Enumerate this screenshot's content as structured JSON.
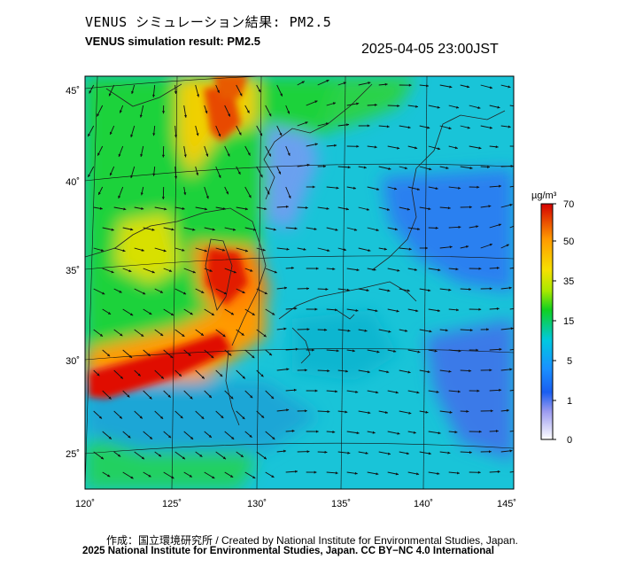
{
  "header": {
    "title_jp": "VENUS シミュレーション結果: PM2.5",
    "title_en": "VENUS simulation result: PM2.5",
    "timestamp": "2025-04-05 23:00JST"
  },
  "map": {
    "lon_range": [
      120,
      145
    ],
    "lat_range": [
      23,
      46
    ],
    "lat_ticks": [
      {
        "value": 45,
        "label": "45˚"
      },
      {
        "value": 40,
        "label": "40˚"
      },
      {
        "value": 35,
        "label": "35˚"
      },
      {
        "value": 30,
        "label": "30˚"
      },
      {
        "value": 25,
        "label": "25˚"
      }
    ],
    "lon_ticks": [
      {
        "value": 120,
        "label": "120˚"
      },
      {
        "value": 125,
        "label": "125˚"
      },
      {
        "value": 130,
        "label": "130˚"
      },
      {
        "value": 135,
        "label": "135˚"
      },
      {
        "value": 140,
        "label": "140˚"
      },
      {
        "value": 145,
        "label": "145˚"
      }
    ],
    "wind_vectors": true,
    "high_concentration_region": "East China Sea, Yellow Sea and Korea"
  },
  "colorbar": {
    "unit": "µg/m³",
    "ticks": [
      {
        "value": 70,
        "label": "70"
      },
      {
        "value": 50,
        "label": "50"
      },
      {
        "value": 35,
        "label": "35"
      },
      {
        "value": 15,
        "label": "15"
      },
      {
        "value": 5,
        "label": "5"
      },
      {
        "value": 1,
        "label": "1"
      },
      {
        "value": 0,
        "label": "0"
      }
    ],
    "colors": {
      "max": "#d40000",
      "high": "#ff9a00",
      "mid": "#f6e000",
      "green": "#18d200",
      "cyan": "#00c8e0",
      "blue": "#1a6cf0",
      "low": "#ffffff"
    }
  },
  "footer": {
    "credit_line1": "作成：国立環境研究所 / Created by National Institute for Environmental Studies, Japan.",
    "credit_line2": "2025 National Institute for Environmental Studies, Japan. CC BY−NC 4.0 International"
  }
}
